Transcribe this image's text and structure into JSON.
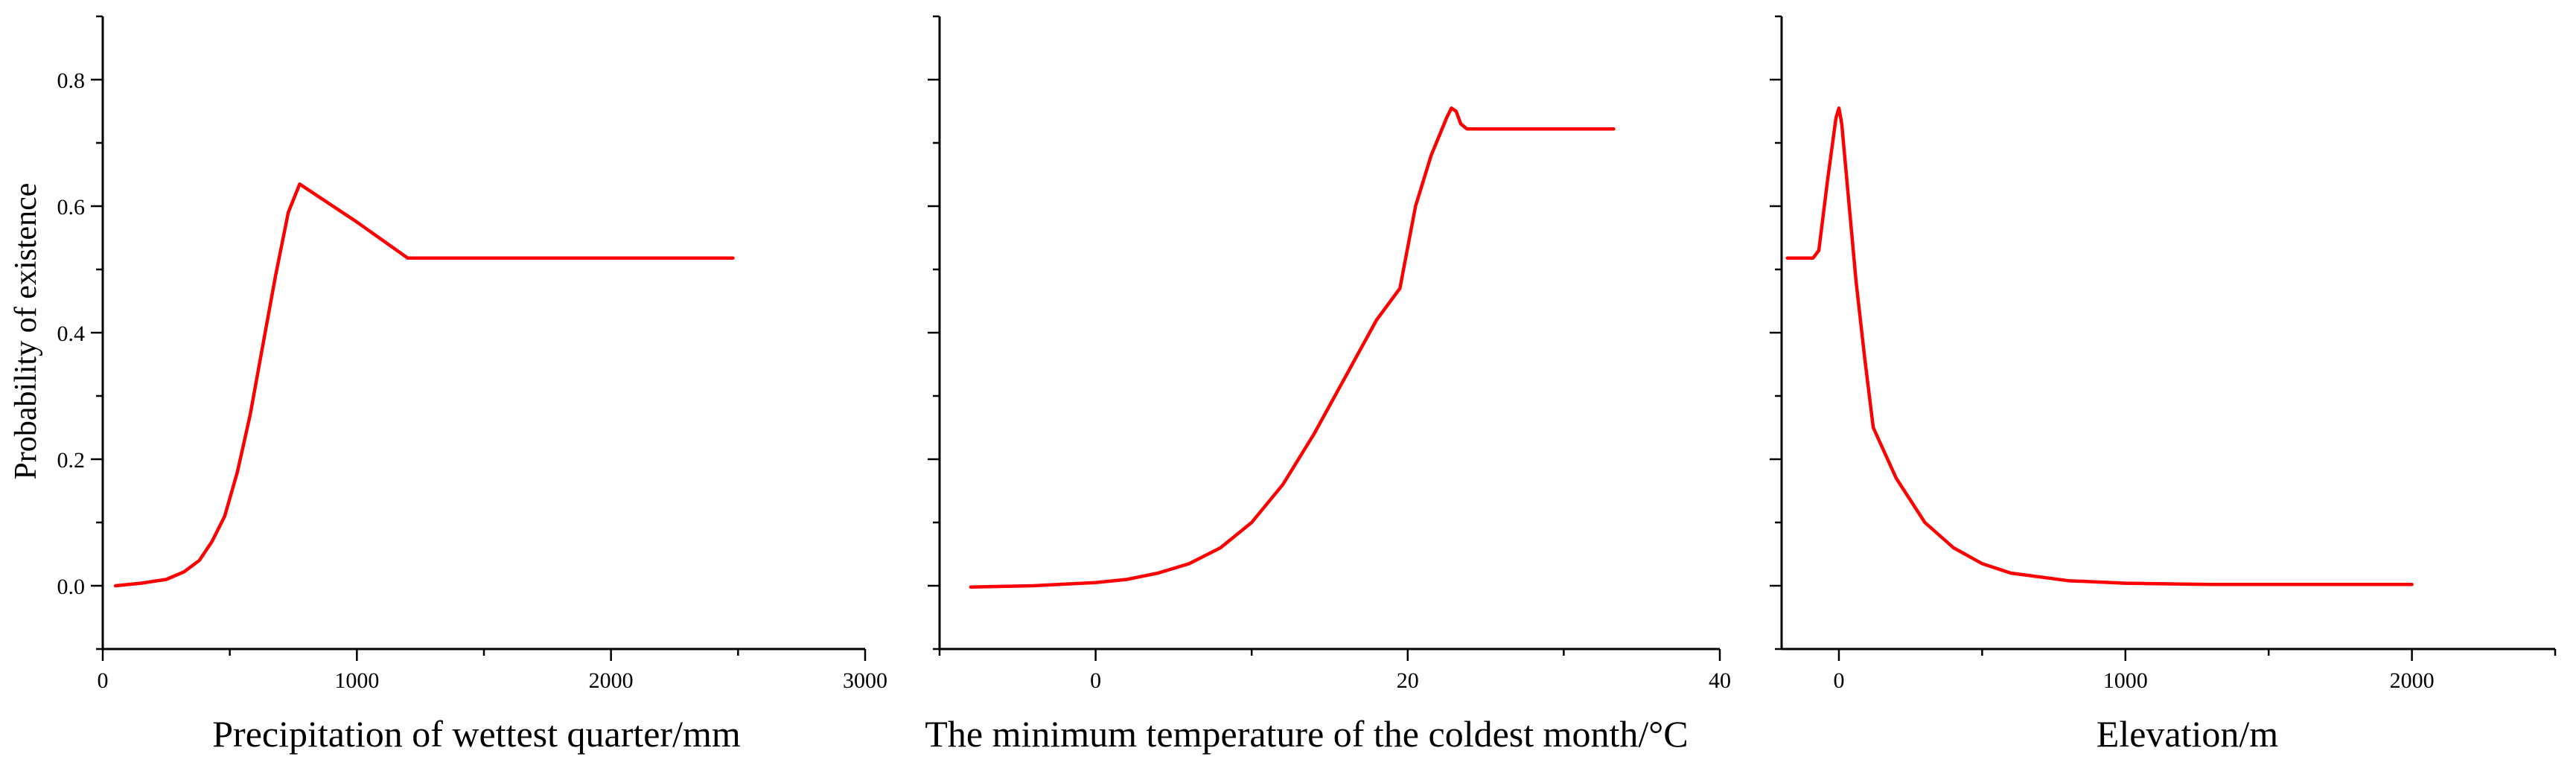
{
  "chart_data": [
    {
      "type": "line",
      "xlabel": "Precipitation of wettest quarter/mm",
      "ylabel": "Probability of existence",
      "xlim": [
        0,
        3000
      ],
      "ylim": [
        -0.1,
        0.9
      ],
      "x_ticks": [
        0,
        1000,
        2000,
        3000
      ],
      "y_ticks": [
        0.0,
        0.2,
        0.4,
        0.6,
        0.8
      ],
      "x_tick_labels": [
        "0",
        "1000",
        "2000",
        "3000"
      ],
      "y_tick_labels": [
        "0.0",
        "0.2",
        "0.4",
        "0.6",
        "0.8"
      ],
      "line_color": "#ff0000",
      "grid": false,
      "series": [
        {
          "x": [
            50,
            150,
            250,
            320,
            380,
            430,
            480,
            530,
            580,
            630,
            680,
            730,
            775,
            1000,
            1200,
            1600,
            2000,
            2480
          ],
          "y": [
            0.0,
            0.004,
            0.01,
            0.022,
            0.04,
            0.07,
            0.11,
            0.18,
            0.27,
            0.38,
            0.49,
            0.59,
            0.635,
            0.575,
            0.518,
            0.518,
            0.518,
            0.518
          ]
        }
      ]
    },
    {
      "type": "line",
      "xlabel": "The minimum temperature of the coldest month/°C",
      "xlim": [
        -10,
        40
      ],
      "ylim": [
        -0.1,
        0.9
      ],
      "x_ticks": [
        0,
        20,
        40
      ],
      "y_ticks": [
        0.0,
        0.2,
        0.4,
        0.6,
        0.8
      ],
      "x_tick_labels": [
        "0",
        "20",
        "40"
      ],
      "line_color": "#ff0000",
      "grid": false,
      "series": [
        {
          "x": [
            -8,
            -4,
            0,
            2,
            4,
            6,
            8,
            10,
            12,
            14,
            16,
            18,
            19.5,
            20.5,
            21.5,
            22.5,
            22.8,
            23.1,
            23.4,
            23.8,
            28,
            33.2
          ],
          "y": [
            -0.002,
            0.0,
            0.005,
            0.01,
            0.02,
            0.035,
            0.06,
            0.1,
            0.16,
            0.24,
            0.33,
            0.42,
            0.47,
            0.6,
            0.68,
            0.74,
            0.755,
            0.75,
            0.73,
            0.722,
            0.722,
            0.722
          ]
        }
      ]
    },
    {
      "type": "line",
      "xlabel": "Elevation/m",
      "xlim": [
        -200,
        2500
      ],
      "ylim": [
        -0.1,
        0.9
      ],
      "x_ticks": [
        0,
        1000,
        2000
      ],
      "y_ticks": [
        0.0,
        0.2,
        0.4,
        0.6,
        0.8
      ],
      "x_tick_labels": [
        "0",
        "1000",
        "2000"
      ],
      "line_color": "#ff0000",
      "grid": false,
      "series": [
        {
          "x": [
            -180,
            -90,
            -70,
            -40,
            -10,
            0,
            10,
            30,
            60,
            90,
            120,
            200,
            300,
            400,
            500,
            600,
            800,
            1000,
            1300,
            1600,
            2000
          ],
          "y": [
            0.518,
            0.518,
            0.53,
            0.64,
            0.74,
            0.755,
            0.73,
            0.63,
            0.48,
            0.36,
            0.25,
            0.17,
            0.1,
            0.06,
            0.035,
            0.02,
            0.008,
            0.004,
            0.002,
            0.002,
            0.002
          ]
        }
      ]
    }
  ]
}
